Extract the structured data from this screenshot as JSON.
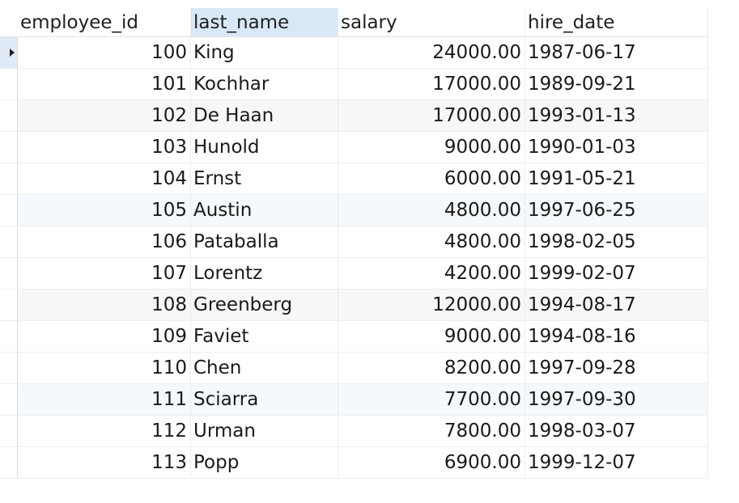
{
  "columns": [
    "employee_id",
    "last_name",
    "salary",
    "hire_date"
  ],
  "current_row_icon": "row-pointer-icon",
  "rows": [
    {
      "employee_id": "100",
      "last_name": "King",
      "salary": "24000.00",
      "hire_date": "1987-06-17"
    },
    {
      "employee_id": "101",
      "last_name": "Kochhar",
      "salary": "17000.00",
      "hire_date": "1989-09-21"
    },
    {
      "employee_id": "102",
      "last_name": "De Haan",
      "salary": "17000.00",
      "hire_date": "1993-01-13"
    },
    {
      "employee_id": "103",
      "last_name": "Hunold",
      "salary": "9000.00",
      "hire_date": "1990-01-03"
    },
    {
      "employee_id": "104",
      "last_name": "Ernst",
      "salary": "6000.00",
      "hire_date": "1991-05-21"
    },
    {
      "employee_id": "105",
      "last_name": "Austin",
      "salary": "4800.00",
      "hire_date": "1997-06-25"
    },
    {
      "employee_id": "106",
      "last_name": "Pataballa",
      "salary": "4800.00",
      "hire_date": "1998-02-05"
    },
    {
      "employee_id": "107",
      "last_name": "Lorentz",
      "salary": "4200.00",
      "hire_date": "1999-02-07"
    },
    {
      "employee_id": "108",
      "last_name": "Greenberg",
      "salary": "12000.00",
      "hire_date": "1994-08-17"
    },
    {
      "employee_id": "109",
      "last_name": "Faviet",
      "salary": "9000.00",
      "hire_date": "1994-08-16"
    },
    {
      "employee_id": "110",
      "last_name": "Chen",
      "salary": "8200.00",
      "hire_date": "1997-09-28"
    },
    {
      "employee_id": "111",
      "last_name": "Sciarra",
      "salary": "7700.00",
      "hire_date": "1997-09-30"
    },
    {
      "employee_id": "112",
      "last_name": "Urman",
      "salary": "7800.00",
      "hire_date": "1998-03-07"
    },
    {
      "employee_id": "113",
      "last_name": "Popp",
      "salary": "6900.00",
      "hire_date": "1999-12-07"
    }
  ]
}
